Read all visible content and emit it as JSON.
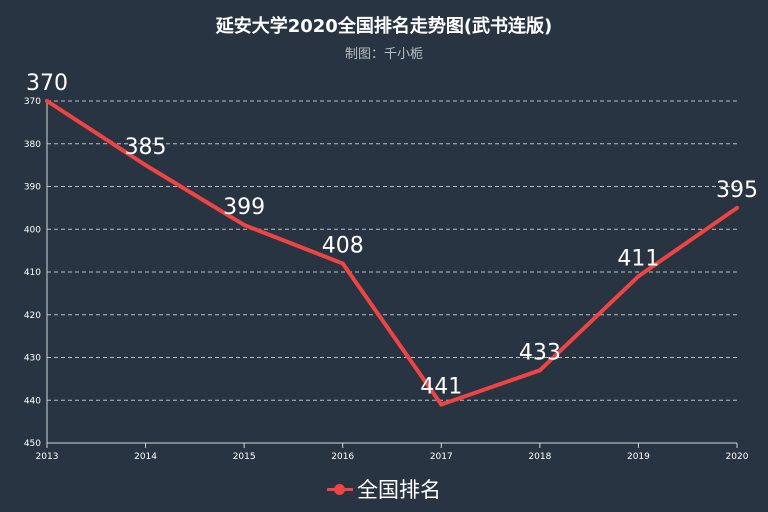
{
  "chart_data": {
    "type": "line",
    "title": "延安大学2020全国排名走势图(武书连版)",
    "subtitle": "制图：千小栀",
    "x": [
      "2013",
      "2014",
      "2015",
      "2016",
      "2017",
      "2018",
      "2019",
      "2020"
    ],
    "series": [
      {
        "name": "全国排名",
        "values": [
          370,
          385,
          399,
          408,
          441,
          433,
          411,
          395
        ],
        "color": "#ee4444"
      }
    ],
    "y_ticks": [
      "370",
      "380",
      "390",
      "400",
      "410",
      "420",
      "430",
      "440",
      "450"
    ],
    "ylim": [
      370,
      450
    ],
    "y_inverted": true,
    "grid": true,
    "legend_position": "bottom",
    "background": "#283441"
  }
}
